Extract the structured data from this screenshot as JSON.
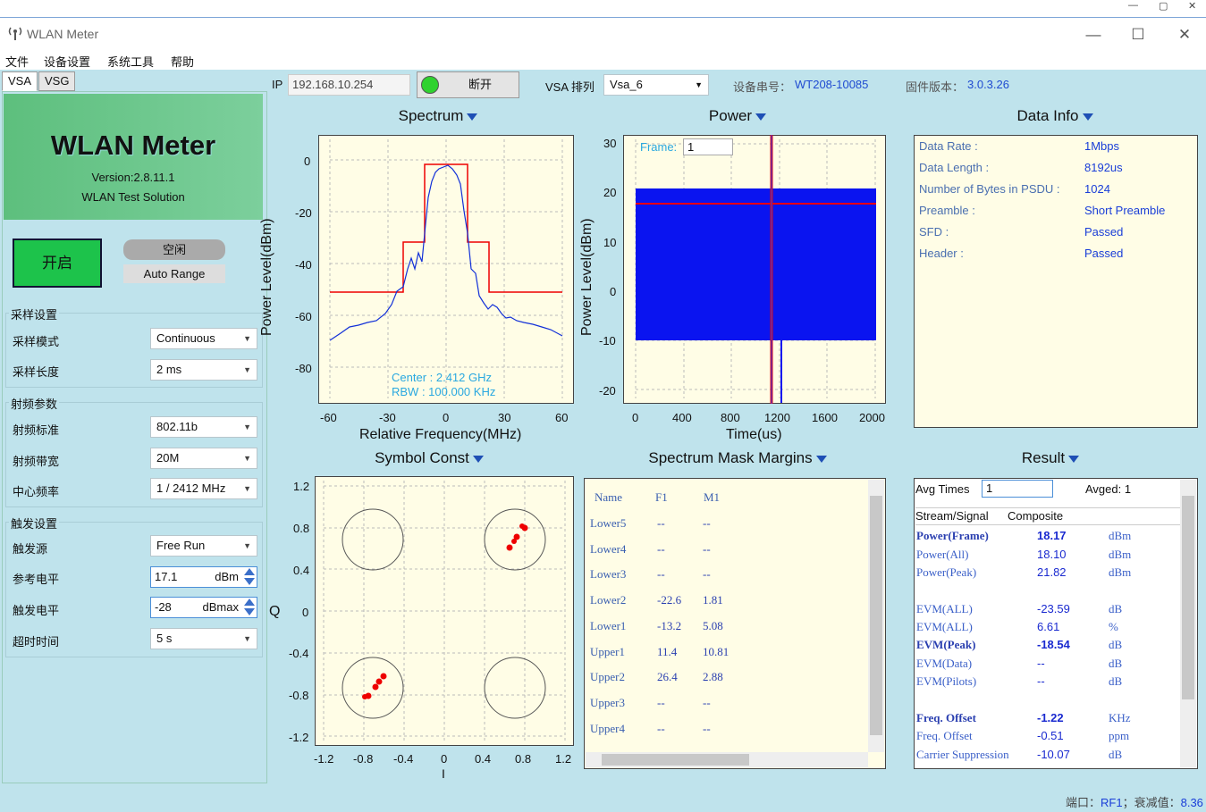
{
  "outer": {
    "ctrl_min": "—",
    "ctrl_max": "▢",
    "ctrl_close": "✕"
  },
  "window": {
    "title": "WLAN Meter",
    "min": "—",
    "max": "☐",
    "close": "✕"
  },
  "menu": [
    "文件",
    "设备设置",
    "系统工具",
    "帮助"
  ],
  "tabs": [
    "VSA",
    "VSG"
  ],
  "logo": {
    "title": "WLAN Meter",
    "version": "Version:2.8.11.1",
    "subtitle": "WLAN Test Solution"
  },
  "controls": {
    "start": "开启",
    "state": "空闲",
    "auto_range": "Auto Range"
  },
  "sampling": {
    "title": "采样设置",
    "mode_label": "采样模式",
    "mode_value": "Continuous",
    "length_label": "采样长度",
    "length_value": "2 ms"
  },
  "rf": {
    "title": "射频参数",
    "std_label": "射频标准",
    "std_value": "802.11b",
    "bw_label": "射频带宽",
    "bw_value": "20M",
    "freq_label": "中心频率",
    "freq_value": "1 / 2412 MHz"
  },
  "trigger": {
    "title": "触发设置",
    "src_label": "触发源",
    "src_value": "Free Run",
    "ref_label": "参考电平",
    "ref_value": "17.1",
    "ref_unit": "dBm",
    "lvl_label": "触发电平",
    "lvl_value": "-28",
    "lvl_unit": "dBmax",
    "timeout_label": "超时时间",
    "timeout_value": "5 s"
  },
  "header": {
    "ip_label": "IP",
    "ip_value": "192.168.10.254",
    "conn_button": "断开",
    "vsa_label": "VSA 排列",
    "vsa_value": "Vsa_6",
    "serial_label": "设备串号：",
    "serial_value": "WT208-10085",
    "fw_label": "固件版本：",
    "fw_value": "3.0.3.26"
  },
  "spectrum": {
    "title": "Spectrum",
    "ylabel": "Power Level(dBm)",
    "xlabel": "Relative Frequency(MHz)",
    "yticks": [
      "0",
      "-20",
      "-40",
      "-60",
      "-80"
    ],
    "xticks": [
      "-60",
      "-30",
      "0",
      "30",
      "60"
    ],
    "center": "Center :  2.412 GHz",
    "rbw": "RBW :  100.000 KHz"
  },
  "power": {
    "title": "Power",
    "ylabel": "Power Level(dBm)",
    "xlabel": "Time(us)",
    "yticks": [
      "30",
      "20",
      "10",
      "0",
      "-10",
      "-20"
    ],
    "xticks": [
      "0",
      "400",
      "800",
      "1200",
      "1600",
      "2000"
    ],
    "frame_label": "Frame:",
    "frame_value": "1"
  },
  "data_info": {
    "title": "Data Info",
    "rows": [
      {
        "label": "Data Rate :",
        "value": "1Mbps"
      },
      {
        "label": "Data Length :",
        "value": "8192us"
      },
      {
        "label": "Number of Bytes in PSDU :",
        "value": "1024"
      },
      {
        "label": "Preamble :",
        "value": "Short Preamble"
      },
      {
        "label": "SFD :",
        "value": "Passed"
      },
      {
        "label": "Header :",
        "value": "Passed"
      }
    ]
  },
  "constellation": {
    "title": "Symbol Const",
    "ylabel": "Q",
    "xlabel": "I",
    "yticks": [
      "1.2",
      "0.8",
      "0.4",
      "0",
      "-0.4",
      "-0.8",
      "-1.2"
    ],
    "xticks": [
      "-1.2",
      "-0.8",
      "-0.4",
      "0",
      "0.4",
      "0.8",
      "1.2"
    ]
  },
  "mask": {
    "title": "Spectrum Mask Margins",
    "headers": [
      "Name",
      "F1",
      "M1"
    ],
    "rows": [
      [
        "Lower5",
        "--",
        "--"
      ],
      [
        "Lower4",
        "--",
        "--"
      ],
      [
        "Lower3",
        "--",
        "--"
      ],
      [
        "Lower2",
        "-22.6",
        "1.81"
      ],
      [
        "Lower1",
        "-13.2",
        "5.08"
      ],
      [
        "Upper1",
        "11.4",
        "10.81"
      ],
      [
        "Upper2",
        "26.4",
        "2.88"
      ],
      [
        "Upper3",
        "--",
        "--"
      ],
      [
        "Upper4",
        "--",
        "--"
      ]
    ]
  },
  "result": {
    "title": "Result",
    "avg_label": "Avg Times",
    "avg_value": "1",
    "avged": "Avged: 1",
    "stream_label": "Stream/Signal",
    "stream_value": "Composite",
    "rows": [
      {
        "name": "Power(Frame)",
        "value": "18.17",
        "unit": "dBm",
        "bold": true
      },
      {
        "name": "Power(All)",
        "value": "18.10",
        "unit": "dBm",
        "bold": false
      },
      {
        "name": "Power(Peak)",
        "value": "21.82",
        "unit": "dBm",
        "bold": false
      },
      {
        "name": "EVM(ALL)",
        "value": "-23.59",
        "unit": "dB",
        "bold": false
      },
      {
        "name": "EVM(ALL)",
        "value": "6.61",
        "unit": "%",
        "bold": false
      },
      {
        "name": "EVM(Peak)",
        "value": "-18.54",
        "unit": "dB",
        "bold": true
      },
      {
        "name": "EVM(Data)",
        "value": "--",
        "unit": "dB",
        "bold": false
      },
      {
        "name": "EVM(Pilots)",
        "value": "--",
        "unit": "dB",
        "bold": false
      },
      {
        "name": "Freq. Offset",
        "value": "-1.22",
        "unit": "KHz",
        "bold": true
      },
      {
        "name": "Freq. Offset",
        "value": "-0.51",
        "unit": "ppm",
        "bold": false
      },
      {
        "name": "Carrier Suppression",
        "value": "-10.07",
        "unit": "dB",
        "bold": false
      }
    ]
  },
  "status": {
    "port_label": "端口：",
    "port_value": "RF1",
    "sep": "；",
    "atten_label": "衰减值：",
    "atten_value": "8.36"
  }
}
